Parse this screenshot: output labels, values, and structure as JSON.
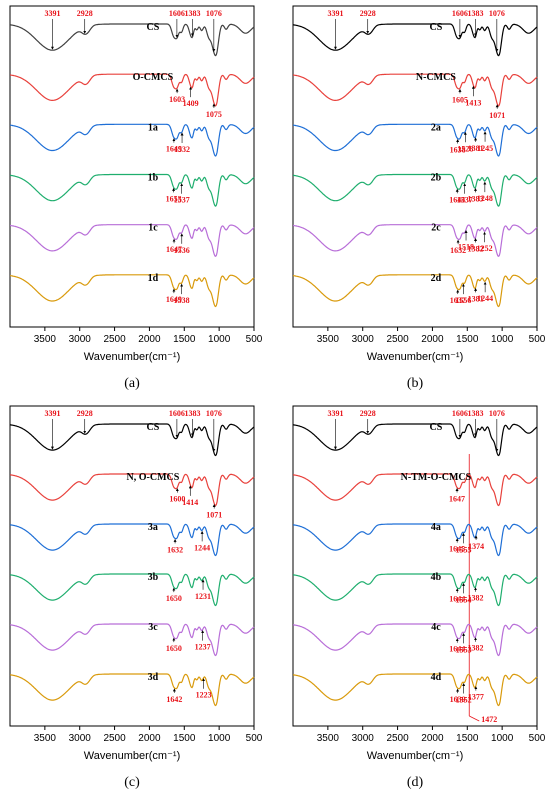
{
  "chart_data": [
    {
      "panel": "(a)",
      "type": "line",
      "xlabel": "Wavenumber(cm⁻¹)",
      "xlim": [
        4000,
        500
      ],
      "x_ticks": [
        3500,
        3000,
        2500,
        2000,
        1500,
        1000,
        500
      ],
      "series": [
        {
          "name": "CS",
          "color": "#404040",
          "annotations": [
            {
              "wn": 3391,
              "label": "3391"
            },
            {
              "wn": 2928,
              "label": "2928"
            },
            {
              "wn": 1606,
              "label": "1606"
            },
            {
              "wn": 1383,
              "label": "1383"
            },
            {
              "wn": 1076,
              "label": "1076"
            }
          ]
        },
        {
          "name": "O-CMCS",
          "color": "#e8413c",
          "annotations": [
            {
              "wn": 1603,
              "label": "1603"
            },
            {
              "wn": 1409,
              "label": "1409"
            },
            {
              "wn": 1075,
              "label": "1075"
            }
          ]
        },
        {
          "name": "1a",
          "color": "#1f6fd6",
          "annotations": [
            {
              "wn": 1649,
              "label": "1649"
            },
            {
              "wn": 1532,
              "label": "1532"
            }
          ]
        },
        {
          "name": "1b",
          "color": "#1fae6e",
          "annotations": [
            {
              "wn": 1653,
              "label": "1653"
            },
            {
              "wn": 1537,
              "label": "1537"
            }
          ]
        },
        {
          "name": "1c",
          "color": "#b86ed8",
          "annotations": [
            {
              "wn": 1647,
              "label": "1647"
            },
            {
              "wn": 1536,
              "label": "1536"
            }
          ]
        },
        {
          "name": "1d",
          "color": "#d99a0c",
          "annotations": [
            {
              "wn": 1649,
              "label": "1649"
            },
            {
              "wn": 1538,
              "label": "1538"
            }
          ]
        }
      ]
    },
    {
      "panel": "(b)",
      "type": "line",
      "xlabel": "Wavenumber(cm⁻¹)",
      "xlim": [
        4000,
        500
      ],
      "x_ticks": [
        3500,
        3000,
        2500,
        2000,
        1500,
        1000,
        500
      ],
      "series": [
        {
          "name": "CS",
          "color": "#000000",
          "annotations": [
            {
              "wn": 3391,
              "label": "3391"
            },
            {
              "wn": 2928,
              "label": "2928"
            },
            {
              "wn": 1606,
              "label": "1606"
            },
            {
              "wn": 1383,
              "label": "1383"
            },
            {
              "wn": 1076,
              "label": "1076"
            }
          ]
        },
        {
          "name": "N-CMCS",
          "color": "#e8413c",
          "annotations": [
            {
              "wn": 1605,
              "label": "1605"
            },
            {
              "wn": 1413,
              "label": "1413"
            },
            {
              "wn": 1071,
              "label": "1071"
            }
          ]
        },
        {
          "name": "2a",
          "color": "#1f6fd6",
          "annotations": [
            {
              "wn": 1638,
              "label": "1638"
            },
            {
              "wn": 1528,
              "label": "1528"
            },
            {
              "wn": 1381,
              "label": "1381"
            },
            {
              "wn": 1245,
              "label": "1245"
            }
          ]
        },
        {
          "name": "2b",
          "color": "#1fae6e",
          "annotations": [
            {
              "wn": 1644,
              "label": "1644"
            },
            {
              "wn": 1537,
              "label": "1537"
            },
            {
              "wn": 1383,
              "label": "1383"
            },
            {
              "wn": 1248,
              "label": "1248"
            }
          ]
        },
        {
          "name": "2c",
          "color": "#b86ed8",
          "annotations": [
            {
              "wn": 1632,
              "label": "1632"
            },
            {
              "wn": 1518,
              "label": "1518"
            },
            {
              "wn": 1382,
              "label": "1382"
            },
            {
              "wn": 1252,
              "label": "1252"
            }
          ]
        },
        {
          "name": "2d",
          "color": "#d99a0c",
          "annotations": [
            {
              "wn": 1637,
              "label": "1637"
            },
            {
              "wn": 1556,
              "label": "1556"
            },
            {
              "wn": 1381,
              "label": "1381"
            },
            {
              "wn": 1244,
              "label": "1244"
            }
          ]
        }
      ]
    },
    {
      "panel": "(c)",
      "type": "line",
      "xlabel": "Wavenumber(cm⁻¹)",
      "xlim": [
        4000,
        500
      ],
      "x_ticks": [
        3500,
        3000,
        2500,
        2000,
        1500,
        1000,
        500
      ],
      "series": [
        {
          "name": "CS",
          "color": "#000000",
          "annotations": [
            {
              "wn": 3391,
              "label": "3391"
            },
            {
              "wn": 2928,
              "label": "2928"
            },
            {
              "wn": 1606,
              "label": "1606"
            },
            {
              "wn": 1383,
              "label": "1383"
            },
            {
              "wn": 1076,
              "label": "1076"
            }
          ]
        },
        {
          "name": "N, O-CMCS",
          "color": "#e8413c",
          "annotations": [
            {
              "wn": 1600,
              "label": "1600"
            },
            {
              "wn": 1414,
              "label": "1414"
            },
            {
              "wn": 1071,
              "label": "1071"
            }
          ]
        },
        {
          "name": "3a",
          "color": "#1f6fd6",
          "annotations": [
            {
              "wn": 1632,
              "label": "1632"
            },
            {
              "wn": 1244,
              "label": "1244"
            }
          ]
        },
        {
          "name": "3b",
          "color": "#1fae6e",
          "annotations": [
            {
              "wn": 1650,
              "label": "1650"
            },
            {
              "wn": 1231,
              "label": "1231"
            }
          ]
        },
        {
          "name": "3c",
          "color": "#b86ed8",
          "annotations": [
            {
              "wn": 1650,
              "label": "1650"
            },
            {
              "wn": 1237,
              "label": "1237"
            }
          ]
        },
        {
          "name": "3d",
          "color": "#d99a0c",
          "annotations": [
            {
              "wn": 1642,
              "label": "1642"
            },
            {
              "wn": 1223,
              "label": "1223"
            }
          ]
        }
      ]
    },
    {
      "panel": "(d)",
      "type": "line",
      "xlabel": "Wavenumber(cm⁻¹)",
      "xlim": [
        4000,
        500
      ],
      "x_ticks": [
        3500,
        3000,
        2500,
        2000,
        1500,
        1000,
        500
      ],
      "reference_line_wn": 1472,
      "reference_label": "1472",
      "series": [
        {
          "name": "CS",
          "color": "#000000",
          "annotations": [
            {
              "wn": 3391,
              "label": "3391"
            },
            {
              "wn": 2928,
              "label": "2928"
            },
            {
              "wn": 1606,
              "label": "1606"
            },
            {
              "wn": 1383,
              "label": "1383"
            },
            {
              "wn": 1076,
              "label": "1076"
            }
          ]
        },
        {
          "name": "N-TM-O-CMCS",
          "color": "#e8413c",
          "annotations": [
            {
              "wn": 1647,
              "label": "1647"
            }
          ]
        },
        {
          "name": "4a",
          "color": "#1f6fd6",
          "annotations": [
            {
              "wn": 1645,
              "label": "1645"
            },
            {
              "wn": 1555,
              "label": "1555"
            },
            {
              "wn": 1374,
              "label": "1374"
            }
          ]
        },
        {
          "name": "4b",
          "color": "#1fae6e",
          "annotations": [
            {
              "wn": 1644,
              "label": "1644"
            },
            {
              "wn": 1554,
              "label": "1554"
            },
            {
              "wn": 1382,
              "label": "1382"
            }
          ]
        },
        {
          "name": "4c",
          "color": "#b86ed8",
          "annotations": [
            {
              "wn": 1644,
              "label": "1644"
            },
            {
              "wn": 1553,
              "label": "1553"
            },
            {
              "wn": 1382,
              "label": "1382"
            }
          ]
        },
        {
          "name": "4d",
          "color": "#d99a0c",
          "annotations": [
            {
              "wn": 1639,
              "label": "1639"
            },
            {
              "wn": 1552,
              "label": "1552"
            },
            {
              "wn": 1377,
              "label": "1377"
            }
          ]
        }
      ]
    }
  ]
}
